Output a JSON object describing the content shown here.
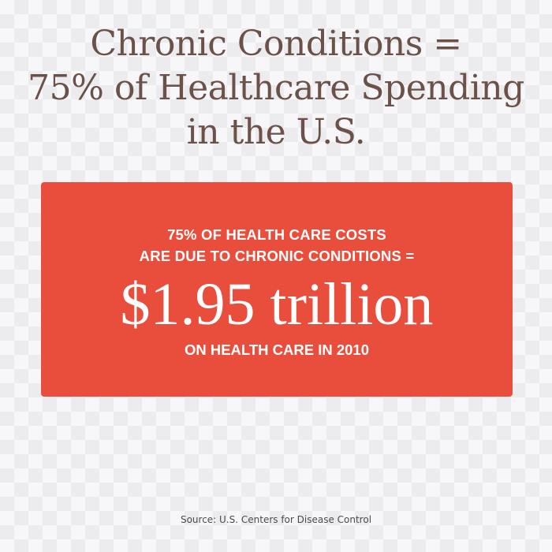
{
  "title": {
    "lines": [
      "Chronic Conditions =",
      "75% of Healthcare Spending",
      "in the U.S."
    ]
  },
  "callout": {
    "lead_lines": [
      "75% OF HEALTH CARE COSTS",
      "ARE DUE TO CHRONIC CONDITIONS ="
    ],
    "amount": "$1.95 trillion",
    "tail": "ON HEALTH CARE IN 2010",
    "background_color": "#e94e3c"
  },
  "source": "Source: U.S. Centers for Disease Control",
  "colors": {
    "title": "#6b5148",
    "callout_text": "#ffffff"
  }
}
